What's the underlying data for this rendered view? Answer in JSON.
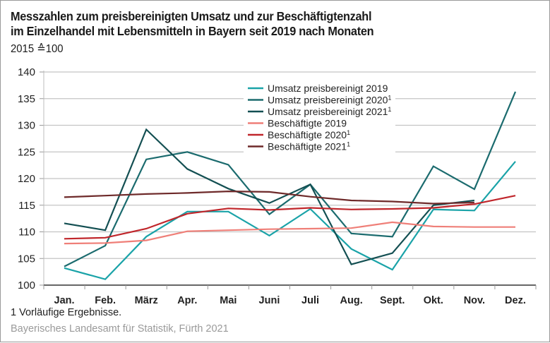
{
  "chart_data": {
    "type": "line",
    "title": "Messzahlen zum preisbereinigten Umsatz und zur Beschäftigtenzahl im Einzelhandel mit Lebensmitteln in Bayern seit 2019 nach Monaten",
    "title_lines": [
      "Messzahlen zum preisbereinigten Umsatz und zur Beschäftigtenzahl",
      "im Einzelhandel mit Lebensmitteln in Bayern seit 2019 nach Monaten"
    ],
    "subtitle": "2015 ≙100",
    "xlabel": "",
    "ylabel": "",
    "categories": [
      "Jan.",
      "Feb.",
      "März",
      "Apr.",
      "Mai",
      "Juni",
      "Juli",
      "Aug.",
      "Sept.",
      "Okt.",
      "Nov.",
      "Dez."
    ],
    "ylim": [
      100,
      140
    ],
    "yticks": [
      100,
      105,
      110,
      115,
      120,
      125,
      130,
      135,
      140
    ],
    "grid": true,
    "legend_position": "top-center",
    "series": [
      {
        "name": "Umsatz preisbereinigt 2019",
        "sup": "",
        "color": "#1aa3a8",
        "values": [
          103.2,
          101.1,
          109.1,
          113.8,
          113.8,
          109.3,
          114.3,
          106.8,
          102.9,
          114.2,
          114.0,
          123.2
        ]
      },
      {
        "name": "Umsatz preisbereinigt 2020",
        "sup": "1",
        "color": "#1b6b6e",
        "values": [
          103.5,
          107.4,
          123.6,
          125.0,
          122.6,
          113.3,
          118.9,
          109.7,
          109.1,
          122.3,
          118.0,
          136.3
        ]
      },
      {
        "name": "Umsatz preisbereinigt 2021",
        "sup": "1",
        "color": "#134f52",
        "values": [
          111.6,
          110.3,
          129.2,
          121.8,
          118.1,
          115.4,
          118.9,
          103.9,
          106.0,
          115.0,
          115.9,
          null
        ]
      },
      {
        "name": "Beschäftigte 2019",
        "sup": "",
        "color": "#ef7f78",
        "values": [
          107.8,
          107.9,
          108.4,
          110.1,
          110.3,
          110.5,
          110.6,
          110.7,
          111.8,
          111.0,
          110.9,
          110.9
        ]
      },
      {
        "name": "Beschäftigte 2020",
        "sup": "1",
        "color": "#c0262b",
        "values": [
          108.7,
          108.9,
          110.6,
          113.4,
          114.4,
          114.1,
          114.5,
          114.2,
          114.3,
          114.5,
          115.2,
          116.8
        ]
      },
      {
        "name": "Beschäftigte 2021",
        "sup": "1",
        "color": "#6e2a2a",
        "values": [
          116.5,
          116.8,
          117.1,
          117.3,
          117.6,
          117.5,
          116.6,
          115.9,
          115.7,
          115.3,
          115.5,
          null
        ]
      }
    ],
    "footnote": "1  Vorläufige Ergebnisse.",
    "source": "Bayerisches Landesamt für Statistik, Fürth 2021"
  }
}
